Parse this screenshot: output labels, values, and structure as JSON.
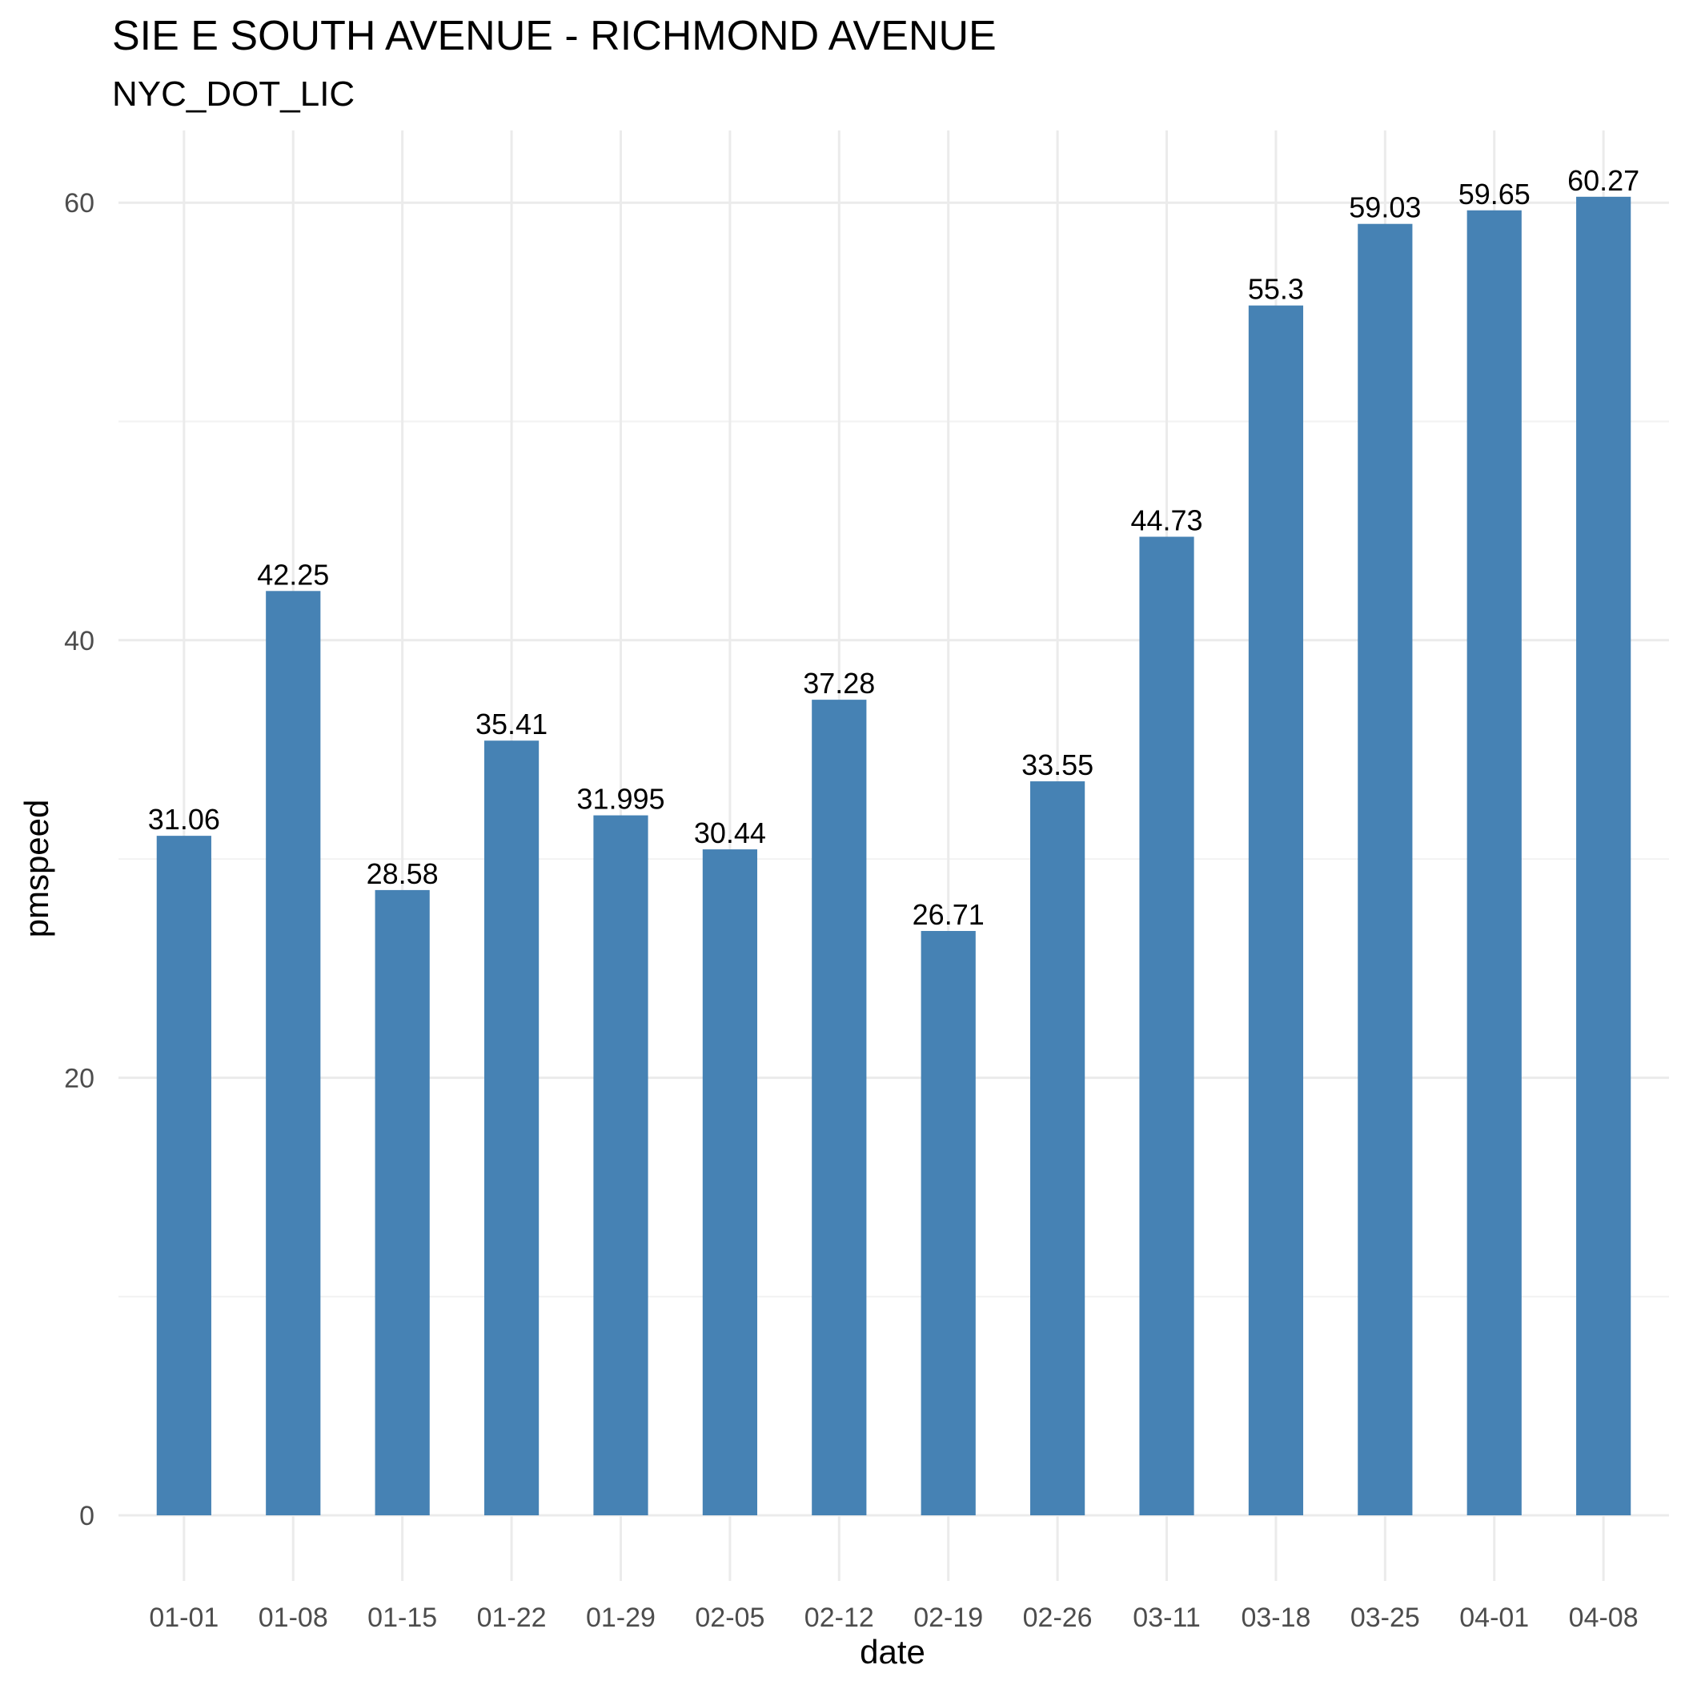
{
  "chart_data": {
    "type": "bar",
    "title": "SIE E SOUTH AVENUE - RICHMOND AVENUE",
    "subtitle": "NYC_DOT_LIC",
    "xlabel": "date",
    "ylabel": "pmspeed",
    "categories": [
      "01-01",
      "01-08",
      "01-15",
      "01-22",
      "01-29",
      "02-05",
      "02-12",
      "02-19",
      "02-26",
      "03-11",
      "03-18",
      "03-25",
      "04-01",
      "04-08"
    ],
    "values": [
      31.06,
      42.25,
      28.58,
      35.41,
      31.995,
      30.44,
      37.28,
      26.71,
      33.55,
      44.73,
      55.3,
      59.03,
      59.65,
      60.27
    ],
    "data_labels": [
      "31.06",
      "42.25",
      "28.58",
      "35.41",
      "31.995",
      "30.44",
      "37.28",
      "26.71",
      "33.55",
      "44.73",
      "55.3",
      "59.03",
      "59.65",
      "60.27"
    ],
    "ylim": [
      -3.0,
      63.3
    ],
    "yticks": [
      0,
      20,
      40,
      60
    ],
    "ytick_labels": [
      "0",
      "20",
      "40",
      "60"
    ],
    "yminor": [
      10,
      30,
      50
    ],
    "grid": true,
    "legend": "none",
    "bar_color": "#4682B4"
  }
}
